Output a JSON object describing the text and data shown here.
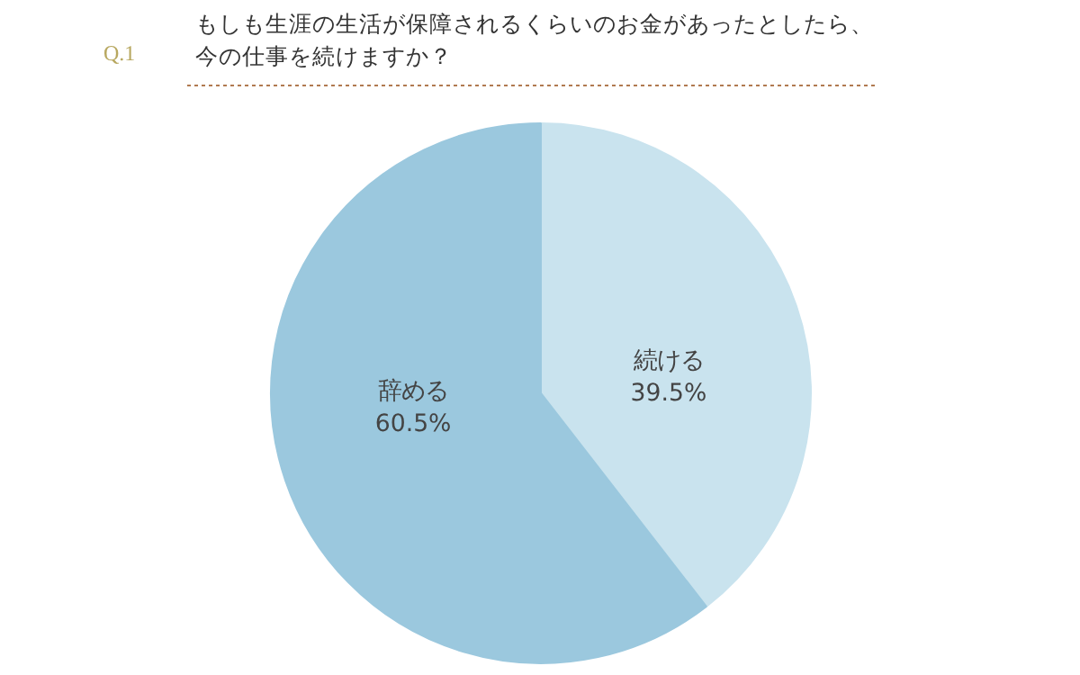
{
  "chart_data": {
    "type": "pie",
    "title": "もしも生涯の生活が保障されるくらいのお金があったとしたら、今の仕事を続けますか？",
    "annotations": [
      "Q.1"
    ],
    "categories": [
      "続ける",
      "辞める"
    ],
    "values": [
      39.5,
      60.5
    ],
    "colors": [
      "#c9e3ee",
      "#9bc8de"
    ],
    "value_labels": [
      "39.5%",
      "60.5%"
    ],
    "legend": false
  }
}
